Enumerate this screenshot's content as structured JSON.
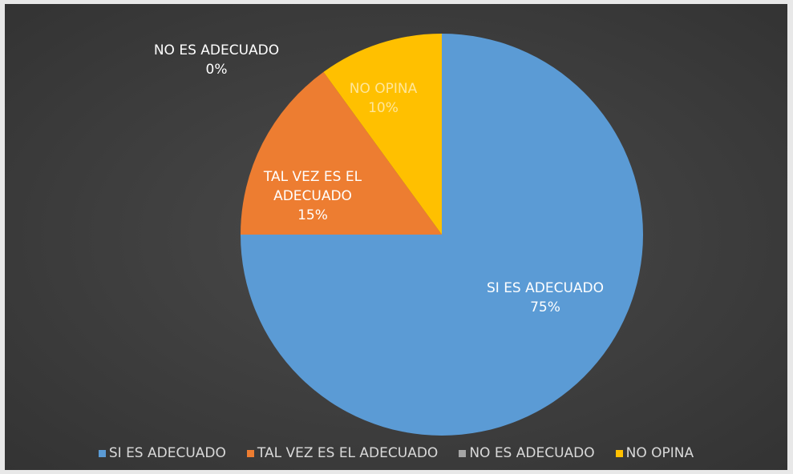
{
  "chart_data": {
    "type": "pie",
    "categories": [
      "SI ES ADECUADO",
      "TAL VEZ ES EL ADECUADO",
      "NO ES ADECUADO",
      "NO OPINA"
    ],
    "values": [
      75,
      15,
      0,
      10
    ],
    "value_labels": [
      "75%",
      "15%",
      "0%",
      "10%"
    ],
    "colors": [
      "#5b9bd5",
      "#ed7d31",
      "#a5a5a5",
      "#ffc000"
    ],
    "legend": "bottom"
  }
}
